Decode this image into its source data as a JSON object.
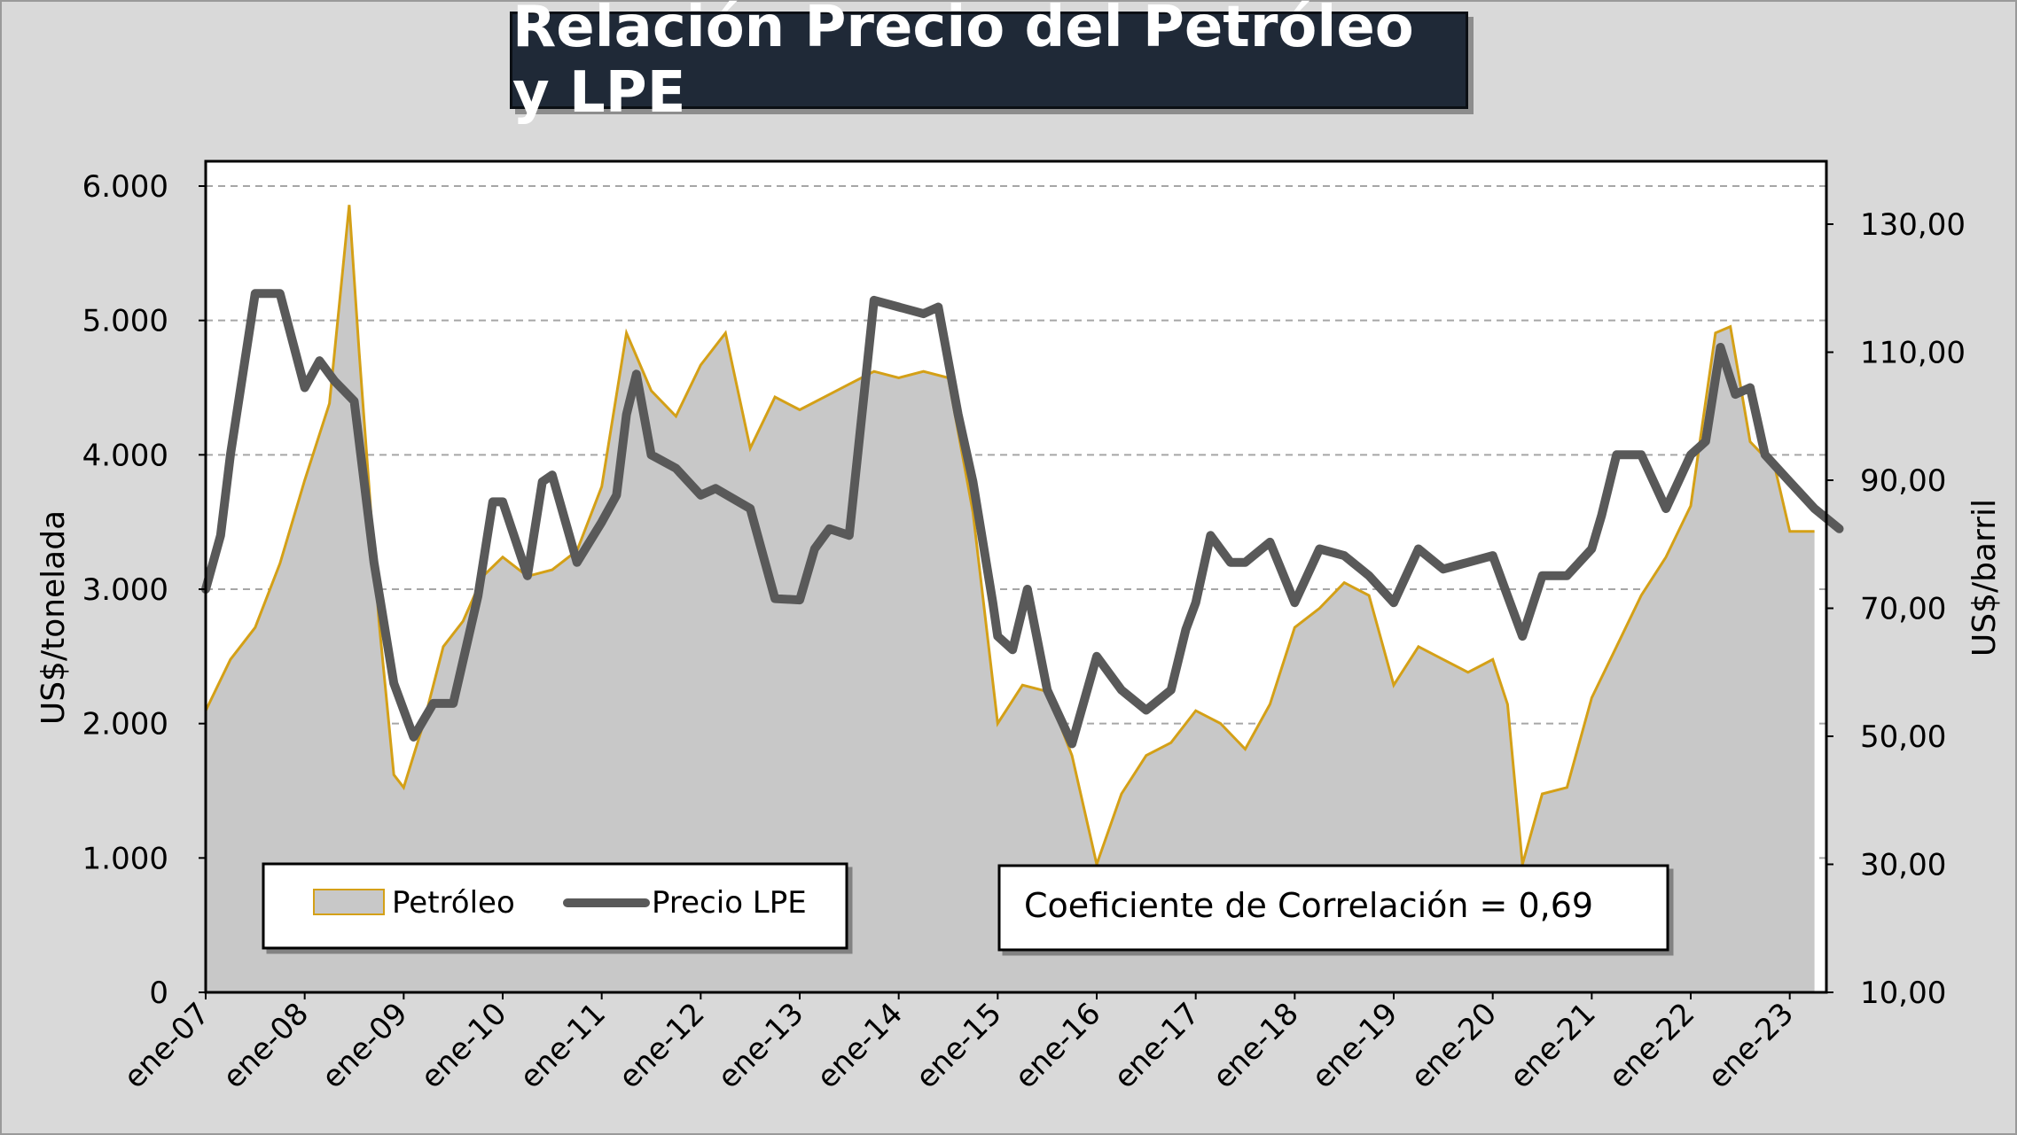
{
  "title": "Relación Precio del Petróleo y LPE",
  "colors": {
    "petroleo_fill": "#c8c8c8",
    "petroleo_line": "#d4a017",
    "lpe_line": "#595959",
    "title_bg": "#1f2937",
    "grid": "#a6a6a6"
  },
  "legend": {
    "petroleo": "Petróleo",
    "lpe": "Precio LPE"
  },
  "annotation": "Coeficiente de Correlación = 0,69",
  "chart_data": {
    "type": "line",
    "x_tick_labels": [
      "ene-07",
      "ene-08",
      "ene-09",
      "ene-10",
      "ene-11",
      "ene-12",
      "ene-13",
      "ene-14",
      "ene-15",
      "ene-16",
      "ene-17",
      "ene-18",
      "ene-19",
      "ene-20",
      "ene-21",
      "ene-22",
      "ene-23"
    ],
    "left_axis": {
      "label": "US$/tonelada",
      "range": [
        0,
        6000
      ],
      "ticks": [
        "0",
        "1.000",
        "2.000",
        "3.000",
        "4.000",
        "5.000",
        "6.000"
      ],
      "tick_values": [
        0,
        1000,
        2000,
        3000,
        4000,
        5000,
        6000
      ]
    },
    "right_axis": {
      "label": "US$/barril",
      "range": [
        10,
        136
      ],
      "ticks": [
        "10,00",
        "30,00",
        "50,00",
        "70,00",
        "90,00",
        "110,00",
        "130,00"
      ],
      "tick_values": [
        10,
        30,
        50,
        70,
        90,
        110,
        130
      ]
    },
    "grid": true,
    "legend_position": "bottom-left",
    "series": [
      {
        "name": "Petróleo",
        "axis": "right",
        "type": "area",
        "points": [
          [
            2007.0,
            54
          ],
          [
            2007.25,
            62
          ],
          [
            2007.5,
            67
          ],
          [
            2007.75,
            77
          ],
          [
            2008.0,
            90
          ],
          [
            2008.25,
            102
          ],
          [
            2008.45,
            133
          ],
          [
            2008.55,
            110
          ],
          [
            2008.75,
            68
          ],
          [
            2008.9,
            44
          ],
          [
            2009.0,
            42
          ],
          [
            2009.2,
            52
          ],
          [
            2009.4,
            64
          ],
          [
            2009.6,
            68
          ],
          [
            2009.8,
            75
          ],
          [
            2010.0,
            78
          ],
          [
            2010.25,
            75
          ],
          [
            2010.5,
            76
          ],
          [
            2010.75,
            79
          ],
          [
            2011.0,
            89
          ],
          [
            2011.25,
            113
          ],
          [
            2011.5,
            104
          ],
          [
            2011.75,
            100
          ],
          [
            2012.0,
            108
          ],
          [
            2012.25,
            113
          ],
          [
            2012.5,
            95
          ],
          [
            2012.75,
            103
          ],
          [
            2013.0,
            101
          ],
          [
            2013.25,
            103
          ],
          [
            2013.5,
            105
          ],
          [
            2013.75,
            107
          ],
          [
            2014.0,
            106
          ],
          [
            2014.25,
            107
          ],
          [
            2014.5,
            106
          ],
          [
            2014.75,
            85
          ],
          [
            2015.0,
            52
          ],
          [
            2015.25,
            58
          ],
          [
            2015.5,
            57
          ],
          [
            2015.75,
            47
          ],
          [
            2016.0,
            30
          ],
          [
            2016.25,
            41
          ],
          [
            2016.5,
            47
          ],
          [
            2016.75,
            49
          ],
          [
            2017.0,
            54
          ],
          [
            2017.25,
            52
          ],
          [
            2017.5,
            48
          ],
          [
            2017.75,
            55
          ],
          [
            2018.0,
            67
          ],
          [
            2018.25,
            70
          ],
          [
            2018.5,
            74
          ],
          [
            2018.75,
            72
          ],
          [
            2019.0,
            58
          ],
          [
            2019.25,
            64
          ],
          [
            2019.5,
            62
          ],
          [
            2019.75,
            60
          ],
          [
            2020.0,
            62
          ],
          [
            2020.15,
            55
          ],
          [
            2020.3,
            30
          ],
          [
            2020.5,
            41
          ],
          [
            2020.75,
            42
          ],
          [
            2021.0,
            56
          ],
          [
            2021.25,
            64
          ],
          [
            2021.5,
            72
          ],
          [
            2021.75,
            78
          ],
          [
            2022.0,
            86
          ],
          [
            2022.25,
            113
          ],
          [
            2022.4,
            114
          ],
          [
            2022.6,
            96
          ],
          [
            2022.85,
            92
          ],
          [
            2023.0,
            82
          ],
          [
            2023.25,
            82
          ]
        ]
      },
      {
        "name": "Precio LPE",
        "axis": "left",
        "type": "line",
        "points": [
          [
            2007.0,
            3000
          ],
          [
            2007.15,
            3400
          ],
          [
            2007.25,
            4000
          ],
          [
            2007.5,
            5200
          ],
          [
            2007.75,
            5200
          ],
          [
            2008.0,
            4500
          ],
          [
            2008.15,
            4700
          ],
          [
            2008.3,
            4550
          ],
          [
            2008.5,
            4400
          ],
          [
            2008.7,
            3200
          ],
          [
            2008.9,
            2300
          ],
          [
            2009.1,
            1900
          ],
          [
            2009.3,
            2150
          ],
          [
            2009.5,
            2150
          ],
          [
            2009.75,
            2950
          ],
          [
            2009.9,
            3650
          ],
          [
            2010.0,
            3650
          ],
          [
            2010.25,
            3100
          ],
          [
            2010.4,
            3800
          ],
          [
            2010.5,
            3850
          ],
          [
            2010.75,
            3200
          ],
          [
            2011.0,
            3500
          ],
          [
            2011.15,
            3700
          ],
          [
            2011.25,
            4300
          ],
          [
            2011.35,
            4600
          ],
          [
            2011.5,
            4000
          ],
          [
            2011.75,
            3900
          ],
          [
            2012.0,
            3700
          ],
          [
            2012.15,
            3750
          ],
          [
            2012.5,
            3600
          ],
          [
            2012.75,
            2930
          ],
          [
            2013.0,
            2920
          ],
          [
            2013.15,
            3300
          ],
          [
            2013.3,
            3450
          ],
          [
            2013.5,
            3400
          ],
          [
            2013.75,
            5150
          ],
          [
            2014.0,
            5100
          ],
          [
            2014.25,
            5050
          ],
          [
            2014.4,
            5100
          ],
          [
            2014.6,
            4300
          ],
          [
            2014.75,
            3800
          ],
          [
            2014.95,
            2900
          ],
          [
            2015.0,
            2650
          ],
          [
            2015.15,
            2550
          ],
          [
            2015.3,
            3000
          ],
          [
            2015.5,
            2250
          ],
          [
            2015.75,
            1850
          ],
          [
            2016.0,
            2500
          ],
          [
            2016.25,
            2250
          ],
          [
            2016.5,
            2100
          ],
          [
            2016.75,
            2250
          ],
          [
            2016.9,
            2700
          ],
          [
            2017.0,
            2900
          ],
          [
            2017.15,
            3400
          ],
          [
            2017.35,
            3200
          ],
          [
            2017.5,
            3200
          ],
          [
            2017.75,
            3350
          ],
          [
            2018.0,
            2900
          ],
          [
            2018.25,
            3300
          ],
          [
            2018.5,
            3250
          ],
          [
            2018.75,
            3100
          ],
          [
            2019.0,
            2900
          ],
          [
            2019.25,
            3300
          ],
          [
            2019.5,
            3150
          ],
          [
            2019.75,
            3200
          ],
          [
            2020.0,
            3250
          ],
          [
            2020.15,
            2950
          ],
          [
            2020.3,
            2650
          ],
          [
            2020.5,
            3100
          ],
          [
            2020.75,
            3100
          ],
          [
            2021.0,
            3300
          ],
          [
            2021.1,
            3550
          ],
          [
            2021.25,
            4000
          ],
          [
            2021.5,
            4000
          ],
          [
            2021.75,
            3600
          ],
          [
            2022.0,
            4000
          ],
          [
            2022.15,
            4100
          ],
          [
            2022.3,
            4800
          ],
          [
            2022.45,
            4450
          ],
          [
            2022.6,
            4500
          ],
          [
            2022.75,
            4000
          ],
          [
            2023.0,
            3800
          ],
          [
            2023.25,
            3600
          ],
          [
            2023.5,
            3450
          ]
        ]
      }
    ]
  }
}
